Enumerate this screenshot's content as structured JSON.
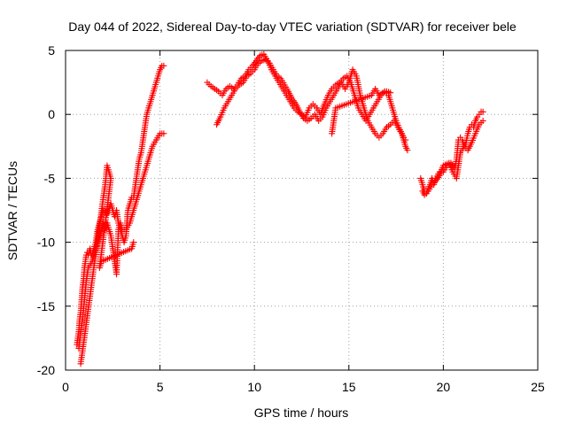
{
  "chart_data": {
    "type": "scatter",
    "title": "Day 044 of 2022, Sidereal Day-to-day VTEC variation (SDTVAR) for receiver bele",
    "xlabel": "GPS time / hours",
    "ylabel": "SDTVAR / TECUs",
    "xlim": [
      0,
      25
    ],
    "ylim": [
      -20,
      5
    ],
    "xticks": [
      0,
      5,
      10,
      15,
      20,
      25
    ],
    "yticks": [
      -20,
      -15,
      -10,
      -5,
      0,
      5
    ],
    "grid": true,
    "marker": "+",
    "series": [
      {
        "name": "SDTVAR",
        "color": "#ff0000",
        "segments": [
          {
            "x": [
              0.6,
              0.65,
              0.7,
              0.75,
              0.8,
              0.85,
              0.9,
              0.95,
              1.0,
              1.05,
              1.1,
              1.15,
              1.2,
              1.25,
              1.3,
              1.35,
              1.4,
              1.5,
              1.6,
              1.7,
              1.8,
              1.9,
              2.0,
              2.1,
              2.2,
              2.3,
              2.4,
              2.5,
              2.6,
              2.7,
              2.8,
              2.9,
              3.0,
              3.1,
              3.2,
              3.3,
              3.4,
              3.5,
              3.6,
              3.7,
              3.8,
              3.9,
              4.0,
              4.1,
              4.2,
              4.3,
              4.4,
              4.5,
              4.6,
              4.7,
              4.8,
              4.9,
              5.0,
              5.1,
              5.2
            ],
            "y": [
              -18.0,
              -17.5,
              -17.0,
              -16.0,
              -15.5,
              -14.5,
              -13.5,
              -13.0,
              -12.0,
              -11.5,
              -11.0,
              -10.8,
              -11.0,
              -10.8,
              -10.5,
              -11.0,
              -11.0,
              -10.5,
              -10.0,
              -9.0,
              -8.5,
              -8.0,
              -7.5,
              -7.5,
              -7.8,
              -7.5,
              -7.0,
              -7.5,
              -8.0,
              -7.5,
              -8.5,
              -9.0,
              -9.5,
              -10.0,
              -9.5,
              -7.5,
              -7.0,
              -6.5,
              -6.5,
              -5.5,
              -4.5,
              -3.5,
              -3.0,
              -2.0,
              -1.0,
              0.0,
              0.5,
              1.0,
              1.5,
              2.0,
              2.5,
              3.0,
              3.5,
              3.8,
              3.8
            ]
          },
          {
            "x": [
              0.7,
              0.8,
              0.9,
              1.0,
              1.1,
              1.2,
              1.4,
              1.6,
              1.8,
              2.0,
              2.1,
              2.2,
              2.3,
              2.4,
              2.5,
              2.6,
              2.7,
              2.8,
              2.9,
              3.0,
              3.2,
              3.4,
              3.6,
              3.8,
              4.0,
              4.2,
              4.4,
              4.6,
              4.8,
              5.0,
              5.2
            ],
            "y": [
              -18.3,
              -17.0,
              -16.0,
              -14.5,
              -13.0,
              -12.0,
              -11.5,
              -10.5,
              -9.5,
              -8.5,
              -9.0,
              -8.5,
              -9.0,
              -9.5,
              -10.5,
              -11.5,
              -12.5,
              -9.0,
              -8.5,
              -9.0,
              -9.0,
              -8.5,
              -7.5,
              -6.5,
              -5.5,
              -4.5,
              -3.5,
              -2.5,
              -2.0,
              -1.5,
              -1.5
            ]
          },
          {
            "x": [
              0.8,
              0.85,
              0.9,
              2.0,
              2.1,
              2.2,
              2.3,
              2.4,
              1.8,
              1.9,
              3.5,
              3.6
            ],
            "y": [
              -19.5,
              -19.0,
              -18.5,
              -6.5,
              -5.5,
              -4.0,
              -4.5,
              -5.0,
              -12.0,
              -11.5,
              -10.5,
              -10.0
            ]
          },
          {
            "x": [
              7.5,
              7.7,
              7.9,
              8.1,
              8.3,
              8.5,
              8.7,
              8.9,
              9.1,
              9.3,
              9.5,
              9.7,
              9.9,
              10.1,
              10.3,
              10.5,
              10.7,
              10.9,
              11.1,
              11.3,
              11.5,
              11.7,
              11.9,
              12.1,
              12.3,
              12.5,
              12.7,
              12.9,
              13.1,
              13.3,
              13.5,
              13.7,
              13.9,
              14.1,
              14.3,
              14.5,
              14.7,
              14.9,
              15.1,
              15.3,
              15.5,
              15.7,
              15.9,
              16.1,
              16.3,
              16.5,
              16.7,
              16.9,
              17.1,
              17.3,
              17.5,
              17.7,
              17.9,
              18.0
            ],
            "y": [
              2.5,
              2.2,
              2.0,
              1.8,
              1.5,
              2.0,
              2.2,
              2.0,
              2.3,
              2.8,
              3.0,
              3.5,
              3.8,
              4.2,
              4.6,
              4.7,
              4.2,
              3.5,
              3.0,
              2.5,
              2.0,
              1.5,
              1.0,
              0.5,
              0.2,
              0.0,
              -0.2,
              0.5,
              0.8,
              0.5,
              0.0,
              0.8,
              1.5,
              2.0,
              2.3,
              2.5,
              2.8,
              3.0,
              2.5,
              1.5,
              0.5,
              0.0,
              -0.5,
              0.0,
              0.5,
              1.0,
              1.5,
              1.8,
              1.5,
              0.5,
              -0.5,
              -1.2,
              -1.8,
              -2.0
            ]
          },
          {
            "x": [
              8.0,
              8.2,
              8.4,
              8.6,
              8.8,
              9.0,
              9.2,
              9.4,
              9.6,
              9.8,
              10.0,
              10.2,
              10.4,
              10.6,
              10.8,
              11.0,
              11.2,
              11.4,
              11.6,
              11.8,
              12.0,
              12.2,
              12.4,
              12.6,
              12.8,
              13.0,
              13.2,
              13.4,
              13.6,
              13.8,
              14.0,
              14.2,
              14.4,
              14.6,
              14.8,
              15.0,
              15.2,
              15.4,
              15.6,
              15.8,
              16.0,
              16.2,
              16.4,
              16.6,
              16.8,
              17.0,
              17.2,
              17.4,
              17.6,
              17.8,
              18.0,
              18.1
            ],
            "y": [
              -0.8,
              -0.2,
              0.5,
              1.0,
              1.5,
              2.0,
              2.3,
              2.5,
              3.0,
              3.2,
              3.5,
              4.0,
              4.2,
              4.3,
              4.0,
              3.5,
              3.0,
              2.8,
              2.3,
              1.8,
              1.2,
              0.8,
              0.2,
              -0.3,
              -0.5,
              -0.3,
              0.0,
              -0.5,
              -0.2,
              0.5,
              1.0,
              1.5,
              2.0,
              2.5,
              2.0,
              2.5,
              3.5,
              3.0,
              1.5,
              0.5,
              -0.5,
              -1.0,
              -1.5,
              -1.8,
              -1.5,
              -1.0,
              -0.8,
              -0.5,
              -1.0,
              -1.5,
              -2.5,
              -2.8
            ]
          },
          {
            "x": [
              14.1,
              14.2,
              14.3,
              16.2,
              16.4,
              16.6,
              16.8,
              17.0,
              17.2
            ],
            "y": [
              -1.5,
              -0.5,
              0.5,
              1.5,
              2.0,
              1.5,
              1.7,
              1.8,
              1.7
            ]
          },
          {
            "x": [
              18.8,
              18.9,
              19.0,
              19.1,
              19.2,
              19.3,
              19.4,
              19.5,
              19.6,
              19.8,
              20.0,
              20.2,
              20.4,
              20.6,
              20.7,
              20.8,
              20.9,
              21.0,
              21.1,
              21.2,
              21.3,
              21.4,
              21.5,
              21.6,
              21.7,
              21.8,
              21.9,
              22.0,
              22.1
            ],
            "y": [
              -5.0,
              -5.5,
              -6.0,
              -6.2,
              -5.8,
              -5.5,
              -5.0,
              -5.5,
              -5.0,
              -4.5,
              -4.5,
              -4.0,
              -3.8,
              -4.2,
              -3.5,
              -2.0,
              -1.8,
              -2.0,
              -2.5,
              -2.2,
              -1.5,
              -1.0,
              -0.8,
              -1.0,
              -0.5,
              -0.2,
              0.0,
              0.2,
              0.2
            ]
          },
          {
            "x": [
              18.9,
              19.0,
              19.2,
              19.4,
              19.6,
              19.8,
              20.0,
              20.3,
              20.5,
              20.7,
              20.9,
              21.1,
              21.3,
              21.5,
              21.7,
              21.9,
              22.1
            ],
            "y": [
              -6.0,
              -6.3,
              -6.0,
              -5.5,
              -5.2,
              -4.8,
              -4.0,
              -3.8,
              -4.5,
              -5.0,
              -3.0,
              -2.5,
              -2.8,
              -2.2,
              -1.5,
              -0.8,
              -0.5
            ]
          }
        ]
      }
    ]
  }
}
